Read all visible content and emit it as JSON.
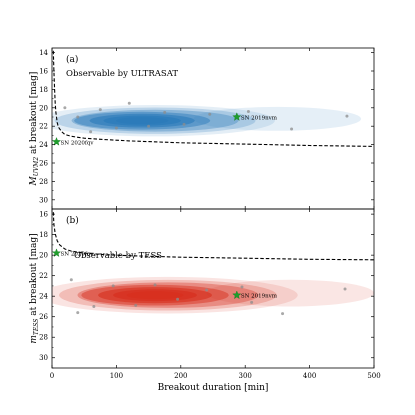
{
  "chart_data": [
    {
      "type": "contour",
      "panel_label": "(a)",
      "ylabel": "M_UVM2 at breakout [mag]",
      "ylabel_main": "M",
      "ylabel_sub": "UVM2",
      "ylabel_rest": " at breakout [mag]",
      "xlim": [
        0,
        500
      ],
      "ylim": [
        31,
        13.5
      ],
      "y_inverted": true,
      "yticks": [
        "14",
        "16",
        "18",
        "20",
        "22",
        "24",
        "26",
        "28",
        "30"
      ],
      "ytick_values": [
        14,
        16,
        18,
        20,
        22,
        24,
        26,
        28,
        30
      ],
      "xticks": [],
      "color": "#2b7bba",
      "region_label": "Observable by ULTRASAT",
      "density_peak": {
        "x": 140,
        "y": 21.4,
        "sx": 120,
        "sy": 1.1
      },
      "threshold_curve": {
        "x": [
          2,
          3,
          4,
          5,
          6,
          8,
          10,
          15,
          20,
          30,
          50,
          80,
          120,
          200,
          300,
          400,
          500
        ],
        "y": [
          13.8,
          16.0,
          18.0,
          19.5,
          20.5,
          21.6,
          22.1,
          22.6,
          22.9,
          23.1,
          23.3,
          23.45,
          23.6,
          23.8,
          23.95,
          24.1,
          24.2
        ]
      },
      "highlighted_events": [
        {
          "name": "SN 2019nvm",
          "x": 287,
          "y": 21.0
        },
        {
          "name": "SN 2020fqv",
          "x": 7,
          "y": 23.7
        }
      ],
      "sample_points": [
        {
          "x": 20,
          "y": 20.0
        },
        {
          "x": 40,
          "y": 21.0
        },
        {
          "x": 75,
          "y": 20.2
        },
        {
          "x": 100,
          "y": 22.2
        },
        {
          "x": 150,
          "y": 22.0
        },
        {
          "x": 175,
          "y": 20.5
        },
        {
          "x": 205,
          "y": 21.8
        },
        {
          "x": 245,
          "y": 20.7
        },
        {
          "x": 305,
          "y": 20.4
        },
        {
          "x": 372,
          "y": 22.3
        },
        {
          "x": 458,
          "y": 20.9
        },
        {
          "x": 60,
          "y": 22.6
        },
        {
          "x": 120,
          "y": 19.5
        }
      ]
    },
    {
      "type": "contour",
      "panel_label": "(b)",
      "ylabel": "m_TESS at breakout [mag]",
      "ylabel_main": "m",
      "ylabel_sub": "TESS",
      "ylabel_rest": " at breakout [mag]",
      "xlabel": "Breakout duration [min]",
      "xlim": [
        0,
        500
      ],
      "ylim": [
        31,
        15.5
      ],
      "y_inverted": true,
      "yticks": [
        "16",
        "18",
        "20",
        "22",
        "24",
        "26",
        "28",
        "30"
      ],
      "ytick_values": [
        16,
        18,
        20,
        22,
        24,
        26,
        28,
        30
      ],
      "xticks": [
        "0",
        "100",
        "200",
        "300",
        "400",
        "500"
      ],
      "xtick_values": [
        0,
        100,
        200,
        300,
        400,
        500
      ],
      "color": "#d7301f",
      "region_label": "Observable by TESS",
      "density_peak": {
        "x": 160,
        "y": 23.9,
        "sx": 130,
        "sy": 1.15
      },
      "threshold_curve": {
        "x": [
          2,
          3,
          5,
          8,
          12,
          20,
          30,
          50,
          80,
          120,
          200,
          300,
          400,
          500
        ],
        "y": [
          15.8,
          17.0,
          17.9,
          18.6,
          19.0,
          19.4,
          19.6,
          19.8,
          19.95,
          20.05,
          20.2,
          20.3,
          20.4,
          20.45
        ]
      },
      "highlighted_events": [
        {
          "name": "SN 2019nvm",
          "x": 287,
          "y": 23.9
        },
        {
          "name": "SN 2020fqv",
          "x": 7,
          "y": 19.8
        }
      ],
      "sample_points": [
        {
          "x": 30,
          "y": 22.4
        },
        {
          "x": 65,
          "y": 25.0
        },
        {
          "x": 95,
          "y": 23.0
        },
        {
          "x": 130,
          "y": 24.9
        },
        {
          "x": 160,
          "y": 22.9
        },
        {
          "x": 195,
          "y": 24.3
        },
        {
          "x": 240,
          "y": 23.4
        },
        {
          "x": 295,
          "y": 23.1
        },
        {
          "x": 310,
          "y": 24.6
        },
        {
          "x": 358,
          "y": 25.7
        },
        {
          "x": 455,
          "y": 23.3
        },
        {
          "x": 40,
          "y": 25.6
        }
      ]
    }
  ]
}
